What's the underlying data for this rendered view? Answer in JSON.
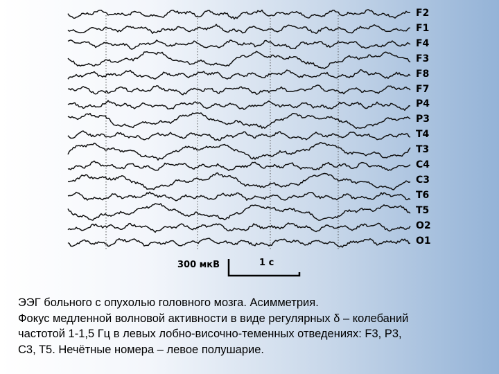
{
  "channels": [
    "F2",
    "F1",
    "F4",
    "F3",
    "F8",
    "F7",
    "P4",
    "P3",
    "T4",
    "T3",
    "C4",
    "C3",
    "T6",
    "T5",
    "O2",
    "O1"
  ],
  "scale": {
    "amplitude": "300 мкВ",
    "time": "1 с"
  },
  "caption": {
    "line1": "ЭЭГ больного с опухолью головного мозга.  Асимметрия.",
    "line2": "Фокус медленной волновой активности в виде регулярных δ – колебаний",
    "line3": "частотой 1-1,5 Гц в левых лобно-височно-теменных отведениях: F3, P3,",
    "line4": "C3, T5.  Нечётные номера – левое полушарие."
  },
  "colors": {
    "trace": "#111111",
    "text": "#000000"
  }
}
